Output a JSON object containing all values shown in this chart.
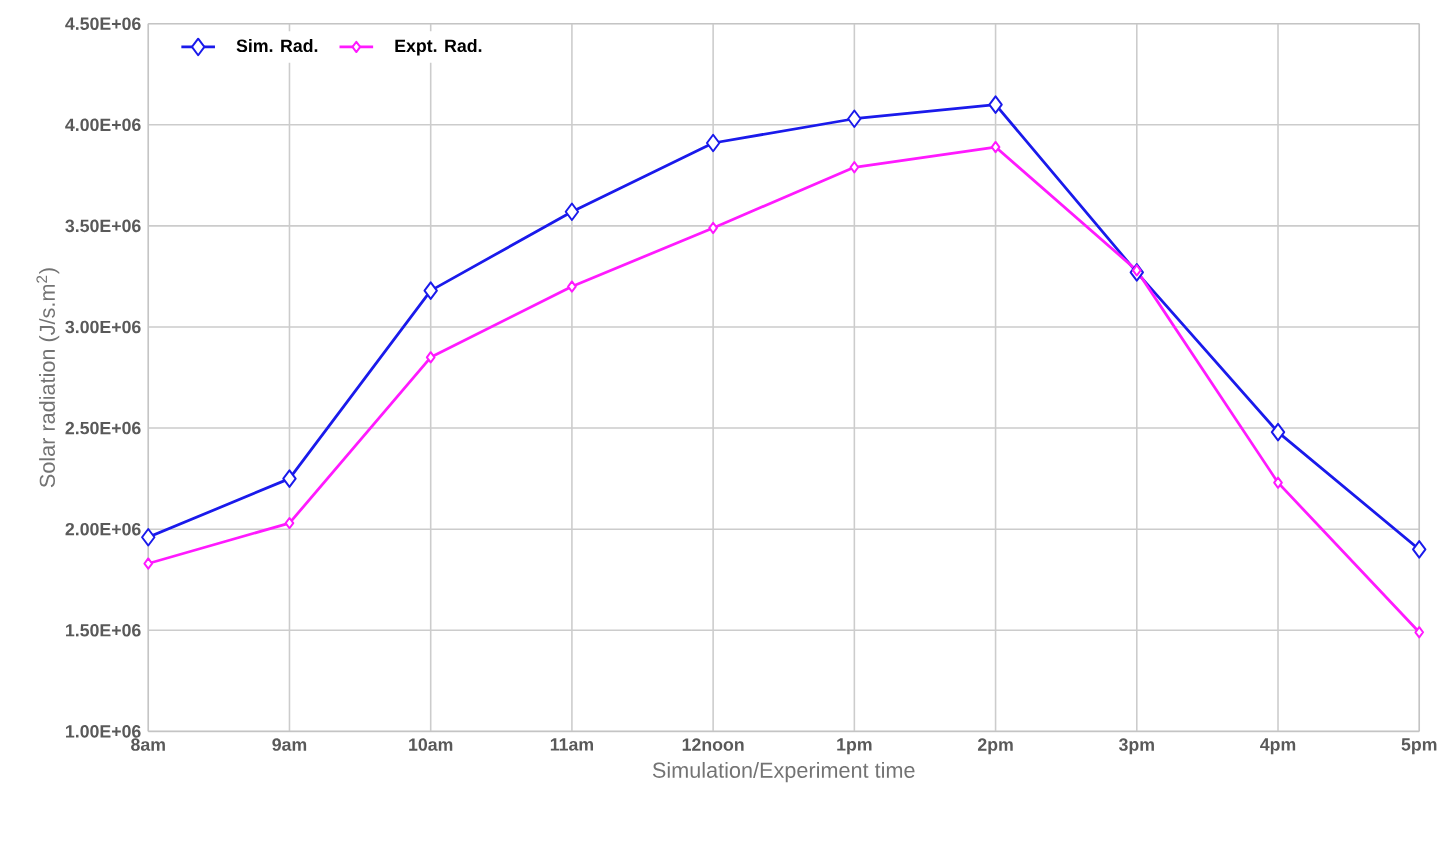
{
  "chart_data": {
    "type": "line",
    "xlabel": "Simulation/Experiment time",
    "ylabel": "Solar radiation (J/s.m$^{2}$)",
    "categories": [
      "8am",
      "9am",
      "10am",
      "11am",
      "12noon",
      "1pm",
      "2pm",
      "3pm",
      "4pm",
      "5pm"
    ],
    "series": [
      {
        "name": "Sim. Rad.",
        "color": "#1a1aeb",
        "values": [
          1960000,
          2250000,
          3180000,
          3570000,
          3910000,
          4030000,
          4100000,
          3270000,
          2480000,
          1900000
        ]
      },
      {
        "name": "Expt. Rad.",
        "color": "#ff1aff",
        "values": [
          1830000,
          2030000,
          2850000,
          3200000,
          3490000,
          3790000,
          3890000,
          3280000,
          2230000,
          1490000
        ]
      }
    ],
    "ylim": [
      1000000,
      4500000
    ],
    "yticks": [
      {
        "value": 1000000,
        "label": "1.00E+06"
      },
      {
        "value": 1500000,
        "label": "1.50E+06"
      },
      {
        "value": 2000000,
        "label": "2.00E+06"
      },
      {
        "value": 2500000,
        "label": "2.50E+06"
      },
      {
        "value": 3000000,
        "label": "3.00E+06"
      },
      {
        "value": 3500000,
        "label": "3.50E+06"
      },
      {
        "value": 4000000,
        "label": "4.00E+06"
      },
      {
        "value": 4500000,
        "label": "4.50E+06"
      }
    ],
    "grid": true,
    "legend": "top left",
    "marker": "diamond",
    "line_style": "solid"
  }
}
